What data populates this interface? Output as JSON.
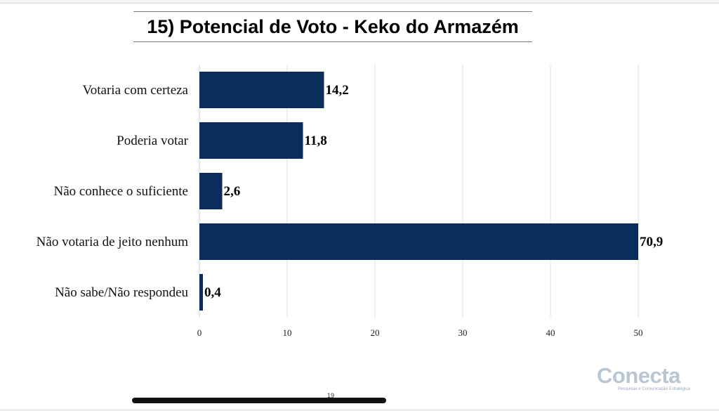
{
  "title": "15) Potencial de Voto - Keko do Armazém",
  "chart_data": {
    "type": "bar",
    "orientation": "horizontal",
    "title": "15) Potencial de Voto - Keko do Armazém",
    "categories": [
      "Votaria com certeza",
      "Poderia votar",
      "Não conhece o suficiente",
      "Não votaria de jeito nenhum",
      "Não sabe/Não respondeu"
    ],
    "values": [
      14.2,
      11.8,
      2.6,
      70.9,
      0.4
    ],
    "value_labels": [
      "14,2",
      "11,8",
      "2,6",
      "70,9",
      "0,4"
    ],
    "xlim": [
      0,
      50
    ],
    "xticks": [
      0,
      10,
      20,
      30,
      40,
      50
    ],
    "xlabel": "",
    "ylabel": "",
    "grid": true,
    "bar_color": "#0a2d5c"
  },
  "logo": {
    "name": "Conecta",
    "tagline": "Pesquisas e Comunicação Estratégica"
  },
  "page_number": "19"
}
